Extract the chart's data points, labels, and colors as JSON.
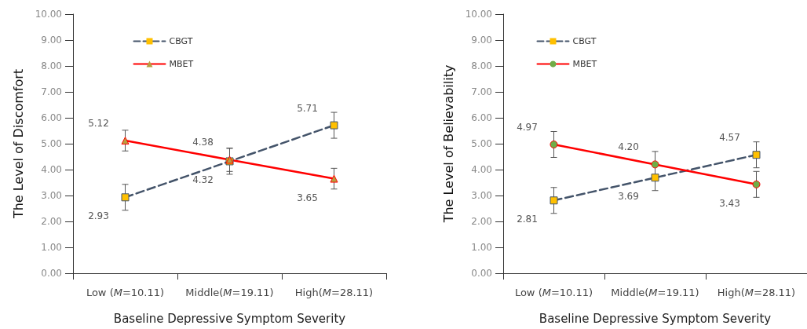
{
  "chart_data": [
    {
      "type": "line",
      "xlabel": "Baseline Depressive Symptom Severity",
      "ylabel": "The Level of Discomfort",
      "categories": [
        "Low (M=10.11)",
        "Middle(M=19.11)",
        "High(M=28.11)"
      ],
      "ylim": [
        0,
        10
      ],
      "yticks": [
        {
          "value": 0,
          "label": "0.00"
        },
        {
          "value": 1,
          "label": "1.00"
        },
        {
          "value": 2,
          "label": "2.00"
        },
        {
          "value": 3,
          "label": "3.00"
        },
        {
          "value": 4,
          "label": "4.00"
        },
        {
          "value": 5,
          "label": "5.00"
        },
        {
          "value": 6,
          "label": "6.00"
        },
        {
          "value": 7,
          "label": "7.00"
        },
        {
          "value": 8,
          "label": "8.00"
        },
        {
          "value": 9,
          "label": "9.00"
        },
        {
          "value": 10,
          "label": "10.00"
        }
      ],
      "grid": false,
      "legend": "top",
      "series": [
        {
          "name": "CBGT",
          "color": "#44546a",
          "colors": [
            "#ffc000",
            "#ffc000",
            "#ffc000"
          ],
          "line_style": "dashed",
          "marker": "square",
          "values": [
            2.93,
            4.32,
            5.71
          ],
          "errors": [
            0.5,
            0.5,
            0.5
          ],
          "value_labels": [
            "2.93",
            "4.32",
            "5.71"
          ]
        },
        {
          "name": "MBET",
          "color": "#ff0000",
          "colors": [
            "#b8a040",
            "#b8a040",
            "#b8a040"
          ],
          "line_style": "solid",
          "marker": "triangle",
          "values": [
            5.12,
            4.38,
            3.65
          ],
          "errors": [
            0.4,
            0.45,
            0.4
          ],
          "value_labels": [
            "5.12",
            "4.38",
            "3.65"
          ]
        }
      ]
    },
    {
      "type": "line",
      "xlabel": "Baseline Depressive Symptom Severity",
      "ylabel": "The Level of Believability",
      "categories": [
        "Low (M=10.11)",
        "Middle(M=19.11)",
        "High(M=28.11)"
      ],
      "ylim": [
        0,
        10
      ],
      "yticks": [
        {
          "value": 0,
          "label": "0.00"
        },
        {
          "value": 1,
          "label": "1.00"
        },
        {
          "value": 2,
          "label": "2.00"
        },
        {
          "value": 3,
          "label": "3.00"
        },
        {
          "value": 4,
          "label": "4.00"
        },
        {
          "value": 5,
          "label": "5.00"
        },
        {
          "value": 6,
          "label": "6.00"
        },
        {
          "value": 7,
          "label": "7.00"
        },
        {
          "value": 8,
          "label": "8.00"
        },
        {
          "value": 9,
          "label": "9.00"
        },
        {
          "value": 10,
          "label": "10.00"
        }
      ],
      "grid": false,
      "legend": "top",
      "series": [
        {
          "name": "CBGT",
          "color": "#44546a",
          "colors": [
            "#ffc000",
            "#ffc000",
            "#ffc000"
          ],
          "line_style": "dashed",
          "marker": "square",
          "values": [
            2.81,
            3.69,
            4.57
          ],
          "errors": [
            0.5,
            0.5,
            0.5
          ],
          "value_labels": [
            "2.81",
            "3.69",
            "4.57"
          ]
        },
        {
          "name": "MBET",
          "color": "#ff0000",
          "colors": [
            "#70ad47",
            "#70ad47",
            "#70ad47"
          ],
          "line_style": "solid",
          "marker": "circle",
          "values": [
            4.97,
            4.2,
            3.43
          ],
          "errors": [
            0.5,
            0.5,
            0.5
          ],
          "value_labels": [
            "4.97",
            "4.20",
            "3.43"
          ]
        }
      ]
    }
  ]
}
